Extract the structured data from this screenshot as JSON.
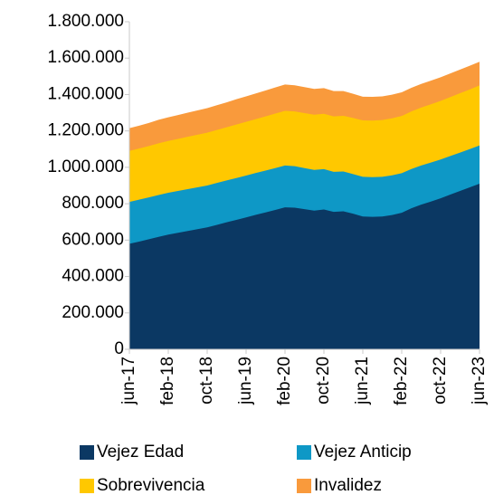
{
  "chart_data": {
    "type": "stacked-area",
    "categories": [
      "jun-17",
      null,
      null,
      null,
      "feb-18",
      null,
      null,
      null,
      "oct-18",
      null,
      null,
      null,
      "jun-19",
      null,
      null,
      null,
      "feb-20",
      null,
      null,
      null,
      "oct-20",
      null,
      null,
      null,
      "jun-21",
      null,
      null,
      null,
      "feb-22",
      null,
      null,
      null,
      "oct-22",
      null,
      null,
      null,
      "jun-23"
    ],
    "series": [
      {
        "name": "Vejez Edad",
        "color": "#0b3863",
        "values": [
          580000,
          592000,
          605000,
          618000,
          630000,
          640000,
          650000,
          660000,
          670000,
          684000,
          698000,
          711000,
          725000,
          739000,
          752000,
          766000,
          780000,
          778000,
          770000,
          762000,
          768000,
          755000,
          758000,
          745000,
          730000,
          728000,
          730000,
          738000,
          750000,
          775000,
          795000,
          812000,
          830000,
          850000,
          870000,
          890000,
          910000
        ]
      },
      {
        "name": "Vejez Anticip",
        "color": "#0e98c6",
        "values": [
          230000,
          230000,
          230000,
          230000,
          230000,
          230000,
          230000,
          230000,
          230000,
          230000,
          230000,
          230000,
          230000,
          230000,
          230000,
          230000,
          230000,
          228000,
          226000,
          224000,
          222000,
          220000,
          219000,
          218000,
          218000,
          218000,
          218000,
          218000,
          218000,
          216000,
          215000,
          214000,
          213000,
          212000,
          211000,
          210000,
          210000
        ]
      },
      {
        "name": "Sobrevivencia",
        "color": "#ffc800",
        "values": [
          280000,
          281000,
          282000,
          284000,
          285000,
          286000,
          288000,
          289000,
          290000,
          291000,
          292000,
          294000,
          295000,
          296000,
          298000,
          299000,
          300000,
          301000,
          302000,
          303000,
          304000,
          305000,
          306000,
          308000,
          310000,
          311000,
          312000,
          313000,
          314000,
          316000,
          318000,
          320000,
          322000,
          324000,
          326000,
          328000,
          330000
        ]
      },
      {
        "name": "Invalidez",
        "color": "#f99a3c",
        "values": [
          125000,
          126000,
          127000,
          129000,
          130000,
          131000,
          132000,
          134000,
          135000,
          136000,
          137000,
          139000,
          140000,
          141000,
          142000,
          144000,
          145000,
          144000,
          143000,
          142000,
          141000,
          139000,
          136000,
          133000,
          130000,
          130000,
          130000,
          130000,
          130000,
          130000,
          130000,
          130000,
          130000,
          130000,
          130000,
          130000,
          130000
        ]
      }
    ],
    "ylim": [
      0,
      1800000
    ],
    "yticks": [
      0,
      {
        "value": 200000,
        "label": "200.000"
      },
      {
        "value": 400000,
        "label": "400.000"
      },
      {
        "value": 600000,
        "label": "600.000"
      },
      {
        "value": 800000,
        "label": "800.000"
      },
      {
        "value": 1000000,
        "label": "1.000.000"
      },
      {
        "value": 1200000,
        "label": "1.200.000"
      },
      {
        "value": 1400000,
        "label": "1.400.000"
      },
      {
        "value": 1600000,
        "label": "1.600.000"
      },
      {
        "value": 1800000,
        "label": "1.800.000"
      }
    ],
    "axis_color": "#c8c8c8"
  }
}
